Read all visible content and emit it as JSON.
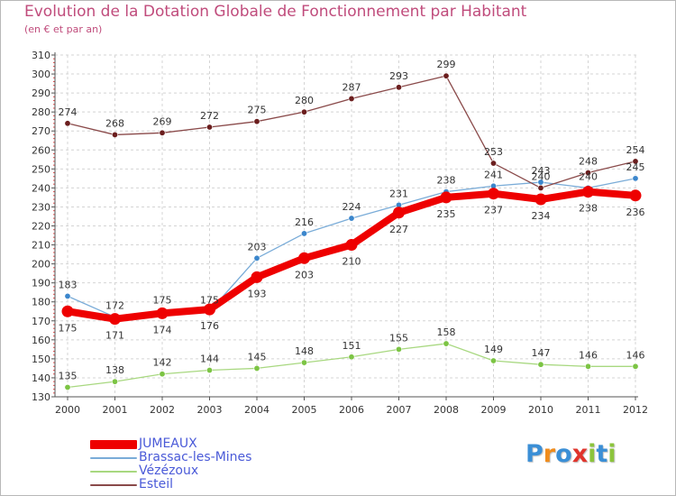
{
  "header": {
    "title": "Evolution de la Dotation Globale de Fonctionnement par Habitant",
    "subtitle": "(en € et par an)"
  },
  "logo": {
    "text": "Proxiti",
    "letter_colors": [
      "#3b8fd6",
      "#f08c1c",
      "#3b8fd6",
      "#e0342c",
      "#8cc43c",
      "#3b8fd6",
      "#8cc43c"
    ]
  },
  "chart_data": {
    "type": "line",
    "title": "Evolution de la Dotation Globale de Fonctionnement par Habitant",
    "subtitle": "(en € et par an)",
    "xlabel": "",
    "ylabel": "",
    "x": [
      2000,
      2001,
      2002,
      2003,
      2004,
      2005,
      2006,
      2007,
      2008,
      2009,
      2010,
      2011,
      2012
    ],
    "ylim": [
      130,
      310
    ],
    "yticks": [
      130,
      140,
      150,
      160,
      170,
      180,
      190,
      200,
      210,
      220,
      230,
      240,
      250,
      260,
      270,
      280,
      290,
      300,
      310
    ],
    "grid": true,
    "legend_position": "bottom-left",
    "series": [
      {
        "name": "JUMEAUX",
        "color": "#ee0000",
        "marker_color": "#ee0000",
        "emphasis": true,
        "values": [
          175,
          171,
          174,
          176,
          193,
          203,
          210,
          227,
          235,
          237,
          234,
          238,
          236
        ]
      },
      {
        "name": "Brassac-les-Mines",
        "color": "#7aacd8",
        "marker_color": "#3b86cc",
        "emphasis": false,
        "values": [
          183,
          172,
          175,
          175,
          203,
          216,
          224,
          231,
          238,
          241,
          243,
          240,
          245
        ]
      },
      {
        "name": "Vézézoux",
        "color": "#a8d880",
        "marker_color": "#7cc444",
        "emphasis": false,
        "values": [
          135,
          138,
          142,
          144,
          145,
          148,
          151,
          155,
          158,
          149,
          147,
          146,
          146
        ]
      },
      {
        "name": "Esteil",
        "color": "#8a4a4a",
        "marker_color": "#6b1e1e",
        "emphasis": false,
        "values": [
          274,
          268,
          269,
          272,
          275,
          280,
          287,
          293,
          299,
          253,
          240,
          248,
          254
        ]
      }
    ]
  }
}
